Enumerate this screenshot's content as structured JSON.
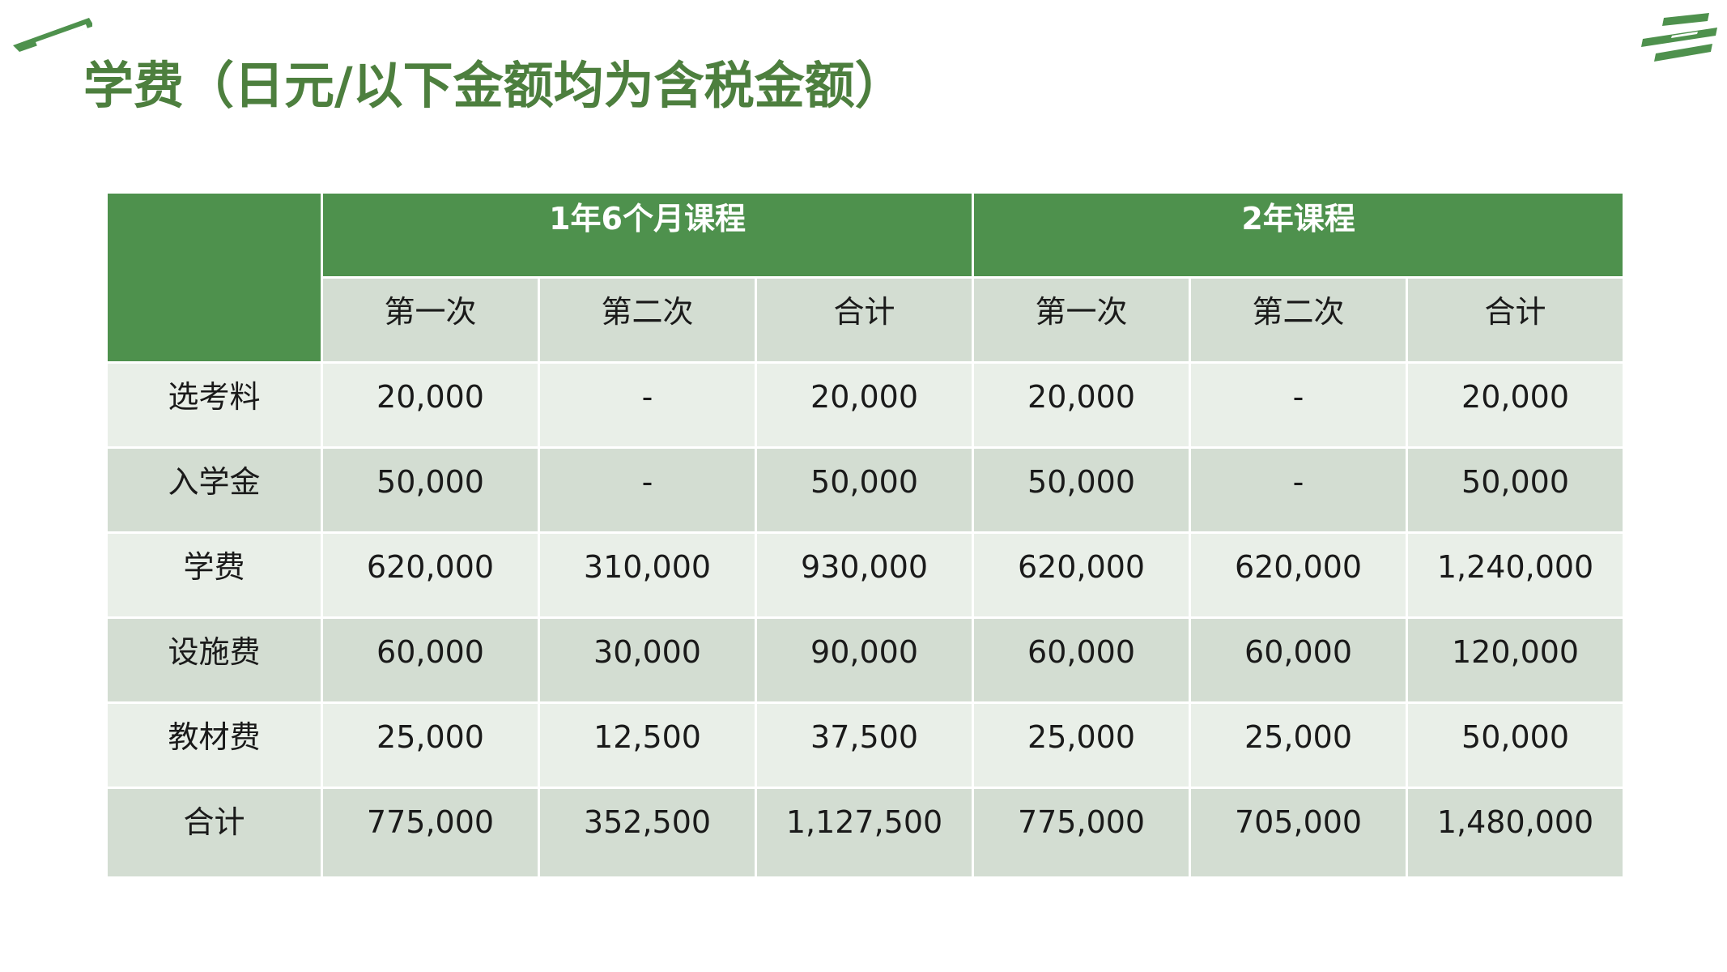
{
  "page": {
    "title": "学费（日元/以下金额均为含税金额）"
  },
  "colors": {
    "title": "#4d7f3e",
    "header_green": "#4e914d",
    "row_light": "#e9efe8",
    "row_dark": "#d3ddd2"
  },
  "table": {
    "courses": [
      {
        "name": "1年6个月课程"
      },
      {
        "name": "2年课程"
      }
    ],
    "subheaders": [
      "第一次",
      "第二次",
      "合计",
      "第一次",
      "第二次",
      "合计"
    ],
    "rows": [
      {
        "label": "选考料",
        "values": [
          "20,000",
          "-",
          "20,000",
          "20,000",
          "-",
          "20,000"
        ]
      },
      {
        "label": "入学金",
        "values": [
          "50,000",
          "-",
          "50,000",
          "50,000",
          "-",
          "50,000"
        ]
      },
      {
        "label": "学费",
        "values": [
          "620,000",
          "310,000",
          "930,000",
          "620,000",
          "620,000",
          "1,240,000"
        ]
      },
      {
        "label": "设施费",
        "values": [
          "60,000",
          "30,000",
          "90,000",
          "60,000",
          "60,000",
          "120,000"
        ]
      },
      {
        "label": "教材费",
        "values": [
          "25,000",
          "12,500",
          "37,500",
          "25,000",
          "25,000",
          "50,000"
        ]
      },
      {
        "label": "合计",
        "values": [
          "775,000",
          "352,500",
          "1,127,500",
          "775,000",
          "705,000",
          "1,480,000"
        ]
      }
    ]
  }
}
